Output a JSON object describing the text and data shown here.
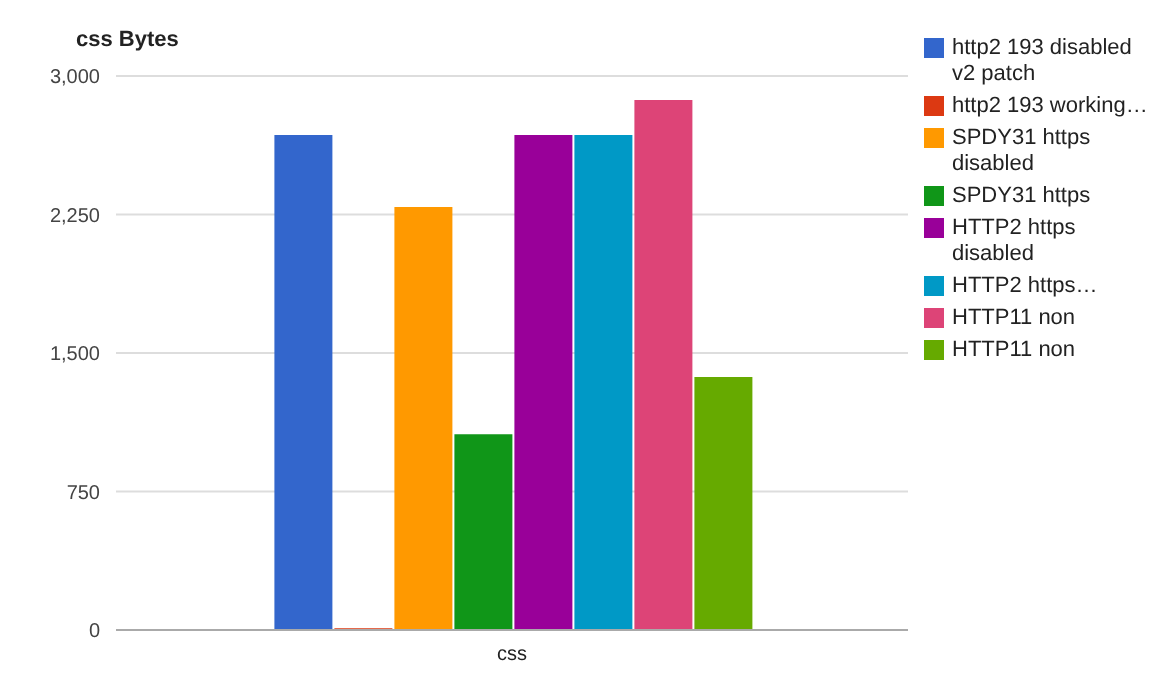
{
  "chart_data": {
    "type": "bar",
    "title": "css Bytes",
    "categories": [
      "css"
    ],
    "series": [
      {
        "name": "http2 193 disabled v2 patch",
        "color": "#3366cc",
        "values": [
          2680
        ]
      },
      {
        "name": "http2 193 working…",
        "color": "#dc3912",
        "values": [
          10
        ]
      },
      {
        "name": "SPDY31 https disabled",
        "color": "#ff9900",
        "values": [
          2290
        ]
      },
      {
        "name": "SPDY31 https",
        "color": "#109618",
        "values": [
          1060
        ]
      },
      {
        "name": "HTTP2 https disabled",
        "color": "#990099",
        "values": [
          2680
        ]
      },
      {
        "name": "HTTP2 https…",
        "color": "#0099c6",
        "values": [
          2680
        ]
      },
      {
        "name": "HTTP11 non",
        "color": "#dd4477",
        "values": [
          2870
        ]
      },
      {
        "name": "HTTP11 non",
        "color": "#66aa00",
        "values": [
          1370
        ]
      }
    ],
    "ylim": [
      0,
      3000
    ],
    "yticks": [
      0,
      750,
      {
        "value": 1500,
        "label": "1,500"
      },
      {
        "value": 2250,
        "label": "2,250"
      },
      {
        "value": 3000,
        "label": "3,000"
      }
    ],
    "grid": "y",
    "legend": "right"
  }
}
